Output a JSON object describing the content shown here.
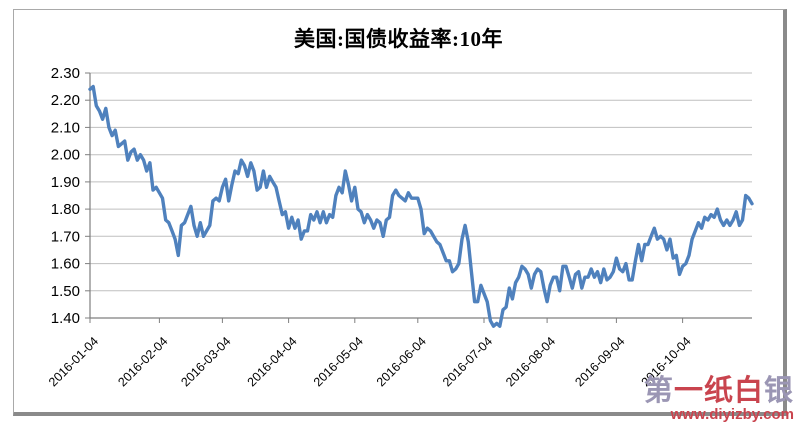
{
  "chart_data": {
    "type": "line",
    "title": "美国:国债收益率:10年",
    "grid": true,
    "legend": "none",
    "ylim": [
      1.4,
      2.3
    ],
    "y_tick_labels": [
      "2.30",
      "2.20",
      "2.10",
      "2.00",
      "1.90",
      "1.80",
      "1.70",
      "1.60",
      "1.50",
      "1.40"
    ],
    "x_tick_labels": [
      "2016-01-04",
      "2016-02-04",
      "2016-03-04",
      "2016-04-04",
      "2016-05-04",
      "2016-06-04",
      "2016-07-04",
      "2016-08-04",
      "2016-09-04",
      "2016-10-04"
    ],
    "x_tick_indices": [
      0,
      22,
      42,
      63,
      84,
      104,
      125,
      145,
      167,
      188
    ],
    "series": [
      {
        "name": "美国:国债收益率:10年",
        "values": [
          2.24,
          2.25,
          2.18,
          2.16,
          2.13,
          2.17,
          2.1,
          2.07,
          2.09,
          2.03,
          2.04,
          2.05,
          1.98,
          2.01,
          2.02,
          1.98,
          2.0,
          1.98,
          1.94,
          1.97,
          1.87,
          1.88,
          1.86,
          1.84,
          1.76,
          1.75,
          1.72,
          1.69,
          1.63,
          1.74,
          1.75,
          1.78,
          1.81,
          1.74,
          1.7,
          1.75,
          1.7,
          1.72,
          1.74,
          1.83,
          1.84,
          1.83,
          1.88,
          1.91,
          1.83,
          1.89,
          1.94,
          1.93,
          1.98,
          1.96,
          1.92,
          1.97,
          1.94,
          1.87,
          1.88,
          1.94,
          1.88,
          1.92,
          1.9,
          1.88,
          1.83,
          1.78,
          1.79,
          1.73,
          1.77,
          1.73,
          1.76,
          1.69,
          1.72,
          1.72,
          1.78,
          1.76,
          1.79,
          1.75,
          1.79,
          1.75,
          1.78,
          1.77,
          1.85,
          1.88,
          1.86,
          1.94,
          1.89,
          1.83,
          1.88,
          1.8,
          1.79,
          1.75,
          1.78,
          1.76,
          1.73,
          1.76,
          1.75,
          1.7,
          1.76,
          1.77,
          1.85,
          1.87,
          1.85,
          1.84,
          1.83,
          1.86,
          1.84,
          1.84,
          1.84,
          1.8,
          1.71,
          1.73,
          1.72,
          1.7,
          1.68,
          1.67,
          1.64,
          1.61,
          1.61,
          1.57,
          1.58,
          1.6,
          1.69,
          1.74,
          1.68,
          1.57,
          1.46,
          1.46,
          1.52,
          1.49,
          1.46,
          1.39,
          1.37,
          1.38,
          1.37,
          1.43,
          1.44,
          1.51,
          1.47,
          1.53,
          1.55,
          1.59,
          1.58,
          1.56,
          1.51,
          1.56,
          1.58,
          1.57,
          1.51,
          1.46,
          1.52,
          1.55,
          1.55,
          1.5,
          1.59,
          1.59,
          1.55,
          1.51,
          1.56,
          1.57,
          1.51,
          1.55,
          1.55,
          1.58,
          1.55,
          1.57,
          1.53,
          1.58,
          1.54,
          1.55,
          1.57,
          1.62,
          1.58,
          1.57,
          1.6,
          1.54,
          1.54,
          1.61,
          1.67,
          1.61,
          1.67,
          1.67,
          1.7,
          1.73,
          1.69,
          1.7,
          1.69,
          1.65,
          1.69,
          1.62,
          1.63,
          1.56,
          1.59,
          1.6,
          1.63,
          1.69,
          1.72,
          1.75,
          1.73,
          1.77,
          1.76,
          1.78,
          1.77,
          1.8,
          1.76,
          1.74,
          1.76,
          1.74,
          1.76,
          1.79,
          1.74,
          1.76,
          1.85,
          1.84,
          1.82
        ]
      }
    ]
  },
  "colors": {
    "line": "#4F81BD",
    "gridline": "#BFBFBF",
    "axis": "#7F7F7F",
    "label": "#000000",
    "border": "#A9A9A9",
    "border_shadow": "#8A8A8A",
    "watermark_red": "#C9444E",
    "watermark_gray": "#9B96B4"
  },
  "watermark": {
    "logo_chars": [
      {
        "text": "第",
        "color": "#9B96B4"
      },
      {
        "text": "一",
        "color": "#C9444E"
      },
      {
        "text": "纸",
        "color": "#C9444E"
      },
      {
        "text": "白",
        "color": "#C9444E"
      },
      {
        "text": "银",
        "color": "#9B96B4"
      }
    ],
    "url": "www.diyizby.com",
    "url_color": "#C9444E"
  }
}
